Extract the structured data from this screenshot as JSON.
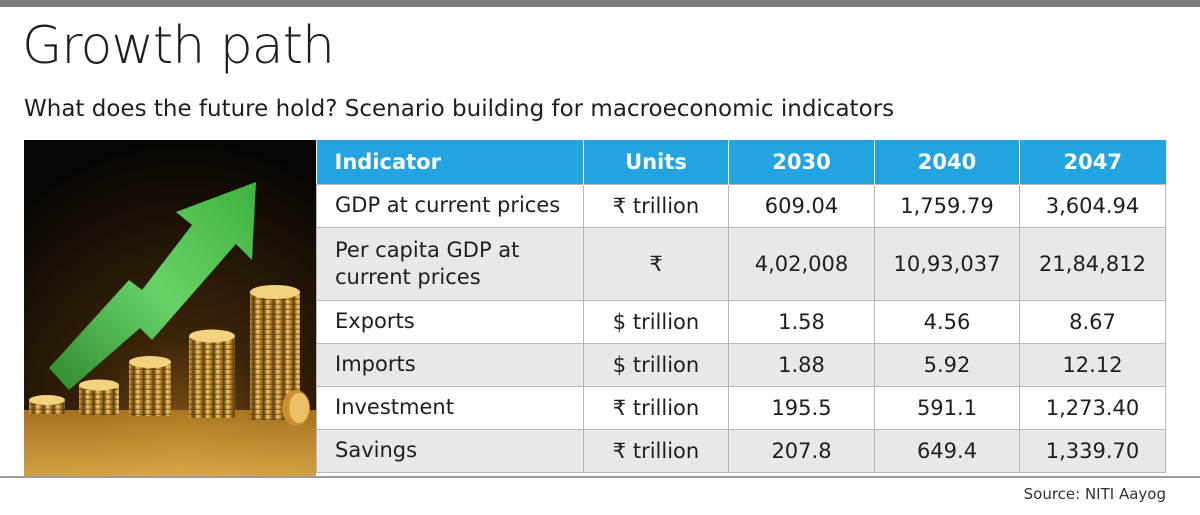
{
  "header": {
    "title": "Growth path",
    "subtitle": "What does the future hold? Scenario building for macroeconomic indicators"
  },
  "table": {
    "columns": [
      "Indicator",
      "Units",
      "2030",
      "2040",
      "2047"
    ],
    "rows": [
      {
        "indicator": "GDP at current prices",
        "units": "₹ trillion",
        "y2030": "609.04",
        "y2040": "1,759.79",
        "y2047": "3,604.94"
      },
      {
        "indicator_line1": "Per capita GDP at",
        "indicator_line2": "current prices",
        "units": "₹",
        "y2030": "4,02,008",
        "y2040": "10,93,037",
        "y2047": "21,84,812"
      },
      {
        "indicator": "Exports",
        "units": "$ trillion",
        "y2030": "1.58",
        "y2040": "4.56",
        "y2047": "8.67"
      },
      {
        "indicator": "Imports",
        "units": "$ trillion",
        "y2030": "1.88",
        "y2040": "5.92",
        "y2047": "12.12"
      },
      {
        "indicator": "Investment",
        "units": "₹ trillion",
        "y2030": "195.5",
        "y2040": "591.1",
        "y2047": "1,273.40"
      },
      {
        "indicator": "Savings",
        "units": "₹ trillion",
        "y2030": "207.8",
        "y2040": "649.4",
        "y2047": "1,339.70"
      }
    ]
  },
  "footer": {
    "source": "Source: NITI Aayog"
  },
  "colors": {
    "header_bg": "#23a4e0",
    "shaded_row": "#e8e8e8",
    "arrow": "#5cc85c",
    "coin": "#d8a640"
  },
  "image": {
    "icon": "growth-arrow-coins-photo"
  }
}
